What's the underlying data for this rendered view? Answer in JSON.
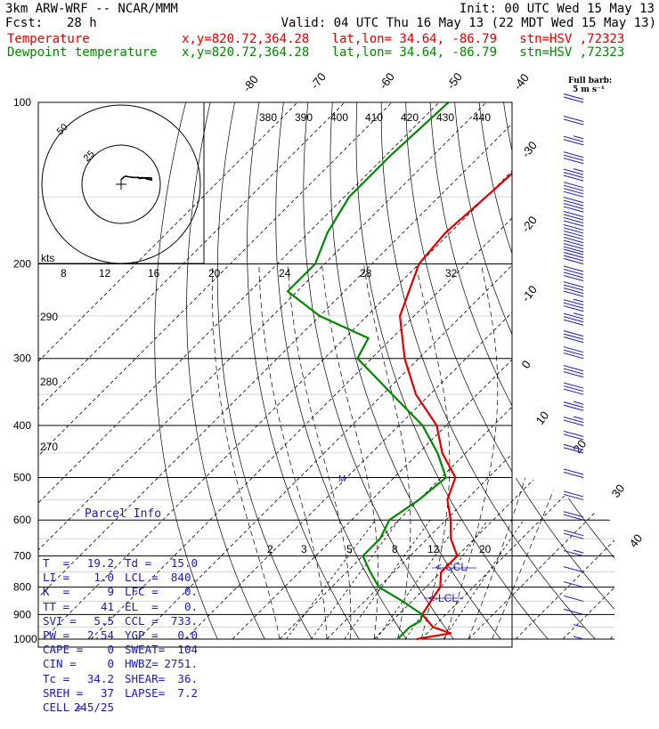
{
  "header": {
    "model": "3km ARW-WRF -- NCAR/MMM",
    "init": "Init: 00 UTC Wed 15 May 13",
    "fcst_label": "Fcst:",
    "fcst_value": "28 h",
    "valid": "Valid: 04 UTC Thu 16 May 13 (22 MDT Wed 15 May 13)",
    "temp_label": "Temperature",
    "temp_loc": "x,y=820.72,364.28   lat,lon= 34.64, -86.79   stn=HSV ,72323",
    "dew_label": "Dewpoint temperature",
    "dew_loc": "x,y=820.72,364.28   lat,lon= 34.64, -86.79   stn=HSV ,72323"
  },
  "colors": {
    "temperature": "#e00000",
    "dewpoint": "#008800",
    "barbs": "#1a1ab8",
    "parcel_text": "#1a1ab8"
  },
  "barb_legend": {
    "title": "Full barb:",
    "value": "5 m s⁻¹"
  },
  "hodograph": {
    "units": "kts",
    "ring_labels": [
      "25",
      "50"
    ]
  },
  "parcel_info": {
    "title": "Parcel Info",
    "rows": [
      [
        "T  =",
        "19.2",
        "Td =",
        "15.0"
      ],
      [
        "LI =",
        "1.0",
        "LCL =",
        "840."
      ],
      [
        "K  =",
        "9",
        "LFC =",
        "0."
      ],
      [
        "TT =",
        "41",
        "EL  =",
        "0."
      ],
      [
        "SVI =",
        "5.5",
        "CCL =",
        "733."
      ],
      [
        "PW =",
        "2.54",
        "YGP =",
        "0.0"
      ],
      [
        "CAPE =",
        "0",
        "SWEAT=",
        "104"
      ],
      [
        "CIN =",
        "0",
        "HWBZ=",
        "2751."
      ],
      [
        "Tc =",
        "34.2",
        "SHEAR=",
        "36."
      ],
      [
        "SREH =",
        "37",
        "LAPSE=",
        "7.2"
      ],
      [
        "CELL =",
        "245/25",
        "",
        ""
      ]
    ]
  },
  "chart_data": {
    "type": "line",
    "skew_t_log_p": true,
    "pressure_axis": {
      "labels": [
        "100",
        "200",
        "300",
        "400",
        "500",
        "600",
        "700",
        "800",
        "900",
        "1000"
      ],
      "range_hpa": [
        1000,
        100
      ],
      "scale": "log"
    },
    "isotherm_labels": [
      "-80",
      "-70",
      "-60",
      "-50",
      "-40",
      "-30",
      "-20",
      "-10",
      "0",
      "10",
      "20",
      "30",
      "40"
    ],
    "theta_labels": [
      "380",
      "390",
      "400",
      "410",
      "420",
      "430",
      "440"
    ],
    "theta_left_labels": [
      "290",
      "280",
      "270"
    ],
    "mixing_ratio_labels_upper": [
      "8",
      "12",
      "16",
      "20",
      "24",
      "28",
      "32"
    ],
    "mixing_ratio_labels_lower": [
      "2",
      "3",
      "5",
      "8",
      "12",
      "20"
    ],
    "annotations": [
      "<-CCL",
      "<-LCL",
      "M"
    ],
    "series": [
      {
        "name": "Temperature",
        "pressure_hpa": [
          100,
          125,
          150,
          175,
          200,
          250,
          300,
          350,
          400,
          450,
          500,
          550,
          600,
          650,
          700,
          750,
          800,
          850,
          900,
          950,
          975,
          1000
        ],
        "temperature_c": [
          -58,
          -59,
          -60,
          -61,
          -60,
          -53,
          -43,
          -33,
          -22,
          -15,
          -7,
          -4,
          1,
          5,
          10,
          10,
          13,
          14,
          15,
          20,
          25,
          19
        ]
      },
      {
        "name": "Dewpoint temperature",
        "pressure_hpa": [
          100,
          125,
          150,
          175,
          200,
          225,
          250,
          275,
          300,
          350,
          400,
          450,
          500,
          550,
          600,
          650,
          700,
          750,
          800,
          850,
          900,
          925,
          950,
          1000
        ],
        "dewpoint_c": [
          -88,
          -89,
          -89,
          -86,
          -82,
          -82,
          -70,
          -55,
          -53,
          -38,
          -25,
          -16,
          -9,
          -10,
          -12,
          -10,
          -10,
          -5,
          0,
          8,
          15,
          16,
          15,
          15
        ]
      }
    ],
    "wind_barbs": {
      "pressure_hpa": [
        100,
        110,
        120,
        130,
        140,
        150,
        160,
        170,
        180,
        190,
        200,
        215,
        230,
        245,
        260,
        280,
        300,
        325,
        350,
        375,
        400,
        425,
        450,
        500,
        550,
        600,
        650,
        700,
        750,
        800,
        850,
        900,
        950,
        1000
      ],
      "speed_ms": [
        10,
        12,
        14,
        16,
        18,
        20,
        20,
        20,
        20,
        20,
        22,
        20,
        20,
        18,
        18,
        16,
        16,
        16,
        16,
        14,
        14,
        12,
        12,
        12,
        10,
        10,
        10,
        8,
        6,
        6,
        5,
        5,
        4,
        3
      ],
      "direction_deg": [
        250,
        252,
        254,
        255,
        256,
        258,
        260,
        262,
        262,
        262,
        262,
        262,
        262,
        260,
        258,
        256,
        255,
        255,
        255,
        252,
        250,
        250,
        250,
        248,
        246,
        244,
        240,
        235,
        220,
        210,
        200,
        200,
        190,
        180
      ]
    }
  }
}
